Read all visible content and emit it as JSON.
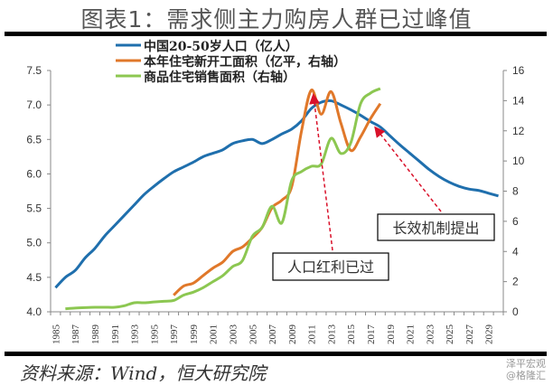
{
  "title": "图表1：需求侧主力购房人群已过峰值",
  "source": "资料来源：Wind，恒大研究院",
  "watermark": [
    "泽平宏观",
    "@格隆汇"
  ],
  "colors": {
    "population": "#1f6fad",
    "new_starts": "#e0782a",
    "sales": "#8cc751",
    "arrow": "#d9112a"
  },
  "chart_data": {
    "type": "line",
    "title": "图表1：需求侧主力购房人群已过峰值",
    "x": [
      1985,
      1986,
      1987,
      1988,
      1989,
      1990,
      1991,
      1992,
      1993,
      1994,
      1995,
      1996,
      1997,
      1998,
      1999,
      2000,
      2001,
      2002,
      2003,
      2004,
      2005,
      2006,
      2007,
      2008,
      2009,
      2010,
      2011,
      2012,
      2013,
      2014,
      2015,
      2016,
      2017,
      2018,
      2019,
      2020,
      2021,
      2022,
      2023,
      2024,
      2025,
      2026,
      2027,
      2028,
      2029,
      2030
    ],
    "x_tick_labels": [
      "1985",
      "1987",
      "1989",
      "1991",
      "1993",
      "1995",
      "1997",
      "1999",
      "2001",
      "2003",
      "2005",
      "2007",
      "2009",
      "2011",
      "2013",
      "2015",
      "2017",
      "2019",
      "2021",
      "2023",
      "2025",
      "2027",
      "2029"
    ],
    "y_left": {
      "range": [
        4.0,
        7.5
      ],
      "ticks": [
        "4.0",
        "4.5",
        "5.0",
        "5.5",
        "6.0",
        "6.5",
        "7.0",
        "7.5"
      ]
    },
    "y_right": {
      "range": [
        0,
        16
      ],
      "ticks": [
        "0",
        "2",
        "4",
        "6",
        "8",
        "10",
        "12",
        "14",
        "16"
      ]
    },
    "grid": false,
    "legend_position": "top-left",
    "series": [
      {
        "name": "中国20-50岁人口（亿人）",
        "axis": "left",
        "color": "#1f6fad",
        "values": [
          4.35,
          4.5,
          4.6,
          4.78,
          4.92,
          5.1,
          5.25,
          5.4,
          5.55,
          5.7,
          5.82,
          5.93,
          6.03,
          6.1,
          6.17,
          6.25,
          6.3,
          6.35,
          6.44,
          6.48,
          6.5,
          6.44,
          6.5,
          6.58,
          6.65,
          6.77,
          6.95,
          7.04,
          7.06,
          7.0,
          6.93,
          6.85,
          6.76,
          6.68,
          6.55,
          6.42,
          6.3,
          6.18,
          6.06,
          5.96,
          5.88,
          5.82,
          5.78,
          5.76,
          5.72,
          5.68
        ]
      },
      {
        "name": "本年住宅新开工面积（亿平，右轴）",
        "axis": "right",
        "color": "#e0782a",
        "values": [
          null,
          null,
          null,
          null,
          null,
          null,
          null,
          null,
          null,
          null,
          null,
          null,
          1.1,
          1.7,
          1.9,
          2.4,
          2.9,
          3.3,
          4.0,
          4.3,
          4.9,
          5.6,
          6.9,
          7.4,
          8.3,
          12.0,
          14.7,
          13.1,
          14.6,
          12.5,
          10.7,
          11.6,
          12.8,
          13.8,
          null,
          null,
          null,
          null,
          null,
          null,
          null,
          null,
          null,
          null,
          null,
          null
        ]
      },
      {
        "name": "商品住宅销售面积（右轴）",
        "axis": "right",
        "color": "#8cc751",
        "values": [
          null,
          0.2,
          0.25,
          0.28,
          0.3,
          0.3,
          0.3,
          0.4,
          0.6,
          0.6,
          0.65,
          0.7,
          0.75,
          1.1,
          1.3,
          1.6,
          2.0,
          2.4,
          3.0,
          3.4,
          5.0,
          5.6,
          7.0,
          5.9,
          8.7,
          9.3,
          9.65,
          9.8,
          11.5,
          10.5,
          11.2,
          13.8,
          14.5,
          14.8,
          null,
          null,
          null,
          null,
          null,
          null,
          null,
          null,
          null,
          null,
          null,
          null
        ]
      }
    ],
    "annotations": [
      {
        "text": "人口红利已过",
        "points_to_year": 2011
      },
      {
        "text": "长效机制提出",
        "points_to_year": 2017
      }
    ]
  }
}
